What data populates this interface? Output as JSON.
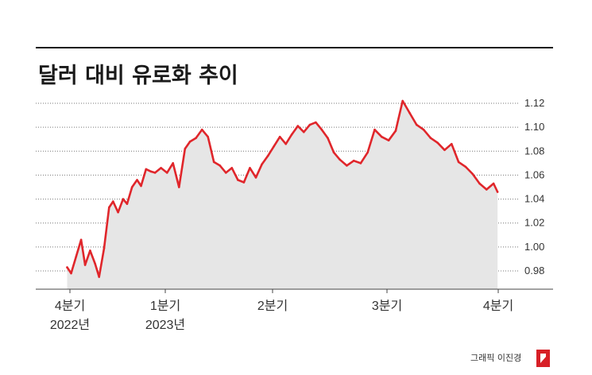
{
  "chart_data": {
    "type": "area",
    "title": "달러 대비 유로화 추이",
    "xlabel": "",
    "ylabel": "",
    "ylim": [
      0.98,
      1.12
    ],
    "y_ticks": [
      "1.12",
      "1.10",
      "1.08",
      "1.06",
      "1.04",
      "1.02",
      "1.00",
      "0.98"
    ],
    "x_ticks": [
      {
        "label": "4분기",
        "sub": "2022년"
      },
      {
        "label": "1분기",
        "sub": "2023년"
      },
      {
        "label": "2분기",
        "sub": ""
      },
      {
        "label": "3분기",
        "sub": ""
      },
      {
        "label": "4분기",
        "sub": ""
      }
    ],
    "grid": true,
    "line_color": "#e0262b",
    "area_color": "#e6e6e6",
    "series": [
      {
        "name": "",
        "x": [
          "2022-10-03",
          "2022-10-07",
          "2022-10-12",
          "2022-10-17",
          "2022-10-21",
          "2022-10-26",
          "2022-10-31",
          "2022-11-04",
          "2022-11-09",
          "2022-11-14",
          "2022-11-18",
          "2022-11-23",
          "2022-11-28",
          "2022-12-02",
          "2022-12-07",
          "2022-12-12",
          "2022-12-16",
          "2022-12-21",
          "2022-12-26",
          "2022-12-30",
          "2023-01-05",
          "2023-01-11",
          "2023-01-17",
          "2023-01-23",
          "2023-01-29",
          "2023-02-03",
          "2023-02-09",
          "2023-02-15",
          "2023-02-21",
          "2023-02-27",
          "2023-03-05",
          "2023-03-11",
          "2023-03-17",
          "2023-03-23",
          "2023-03-29",
          "2023-04-04",
          "2023-04-10",
          "2023-04-16",
          "2023-04-22",
          "2023-04-28",
          "2023-05-04",
          "2023-05-10",
          "2023-05-16",
          "2023-05-22",
          "2023-05-28",
          "2023-06-03",
          "2023-06-09",
          "2023-06-15",
          "2023-06-21",
          "2023-06-27",
          "2023-07-03",
          "2023-07-10",
          "2023-07-17",
          "2023-07-24",
          "2023-07-31",
          "2023-08-07",
          "2023-08-14",
          "2023-08-21",
          "2023-08-28",
          "2023-09-04",
          "2023-09-11",
          "2023-09-18",
          "2023-09-25",
          "2023-10-02",
          "2023-10-09",
          "2023-10-16",
          "2023-10-23",
          "2023-10-30",
          "2023-11-06",
          "2023-11-13",
          "2023-11-20",
          "2023-11-27",
          "2023-12-04",
          "2023-12-08"
        ],
        "values": [
          0.983,
          0.978,
          0.992,
          1.006,
          0.985,
          0.997,
          0.986,
          0.975,
          0.999,
          1.033,
          1.038,
          1.029,
          1.04,
          1.036,
          1.05,
          1.056,
          1.051,
          1.065,
          1.063,
          1.062,
          1.066,
          1.062,
          1.07,
          1.05,
          1.082,
          1.088,
          1.091,
          1.098,
          1.092,
          1.071,
          1.068,
          1.062,
          1.066,
          1.056,
          1.054,
          1.066,
          1.058,
          1.069,
          1.076,
          1.084,
          1.092,
          1.086,
          1.094,
          1.101,
          1.096,
          1.102,
          1.104,
          1.098,
          1.091,
          1.079,
          1.073,
          1.068,
          1.072,
          1.07,
          1.079,
          1.098,
          1.092,
          1.089,
          1.097,
          1.122,
          1.112,
          1.102,
          1.098,
          1.091,
          1.087,
          1.081,
          1.086,
          1.071,
          1.067,
          1.061,
          1.053,
          1.048,
          1.053,
          1.046
        ]
      }
    ],
    "credit": "그래픽 이진경"
  }
}
